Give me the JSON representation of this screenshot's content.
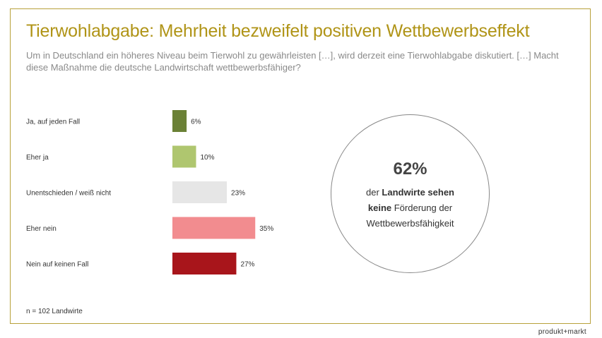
{
  "title": "Tierwohlabgabe: Mehrheit bezweifelt positiven Wettbewerbseffekt",
  "subtitle": "Um in Deutschland ein höheres Niveau beim Tierwohl zu gewährleisten […], wird derzeit eine Tierwohlabgabe diskutiert. […] Macht diese Maßnahme die deutsche Landwirtschaft wettbewerbsfähiger?",
  "chart_data": {
    "type": "bar",
    "orientation": "horizontal",
    "categories": [
      "Ja, auf jeden Fall",
      "Eher ja",
      "Unentschieden / weiß nicht",
      "Eher nein",
      "Nein auf keinen Fall"
    ],
    "values": [
      6,
      10,
      23,
      35,
      27
    ],
    "value_labels": [
      "6%",
      "10%",
      "23%",
      "35%",
      "27%"
    ],
    "colors": [
      "#6b8136",
      "#afc66f",
      "#e6e6e6",
      "#f28c8f",
      "#a8151b"
    ],
    "unit": "%",
    "grid": false,
    "legend": "none"
  },
  "callout": {
    "percent": "62%",
    "line1_pre": "der ",
    "line1_bold": "Landwirte sehen",
    "line2_bold": "keine",
    "line2_post": " Förderung der",
    "line3": "Wettbewerbsfähigkeit"
  },
  "footnote": "n = 102 Landwirte",
  "brand": "produkt+markt",
  "colors": {
    "accent": "#b09417",
    "frame": "#b8a13a"
  }
}
